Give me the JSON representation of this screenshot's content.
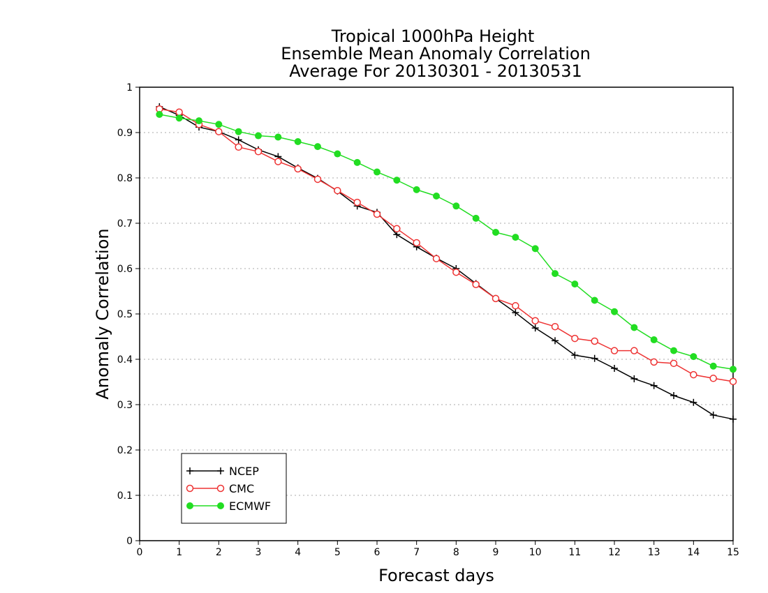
{
  "chart_data": {
    "type": "line",
    "title": [
      "Tropical 1000hPa Height",
      "Ensemble Mean Anomaly Correlation",
      "Average For 20130301 - 20130531"
    ],
    "xlabel": "Forecast days",
    "ylabel": "Anomaly Correlation",
    "xlim": [
      0,
      15
    ],
    "ylim": [
      0,
      1
    ],
    "x_ticks": [
      "0",
      "1",
      "2",
      "3",
      "4",
      "5",
      "6",
      "7",
      "8",
      "9",
      "10",
      "11",
      "12",
      "13",
      "14",
      "15"
    ],
    "y_ticks": [
      "0",
      "0.1",
      "0.2",
      "0.3",
      "0.4",
      "0.5",
      "0.6",
      "0.7",
      "0.8",
      "0.9",
      "1"
    ],
    "grid": "horizontal dotted",
    "legend_position": "bottom-left",
    "x": [
      0.5,
      1,
      1.5,
      2,
      2.5,
      3,
      3.5,
      4,
      4.5,
      5,
      5.5,
      6,
      6.5,
      7,
      7.5,
      8,
      8.5,
      9,
      9.5,
      10,
      10.5,
      11,
      11.5,
      12,
      12.5,
      13,
      13.5,
      14,
      14.5,
      15
    ],
    "series": [
      {
        "name": "NCEP",
        "color": "#000000",
        "marker": "plus",
        "values": [
          0.957,
          0.938,
          0.912,
          0.902,
          0.884,
          0.862,
          0.847,
          0.822,
          0.799,
          0.771,
          0.738,
          0.724,
          0.675,
          0.648,
          0.623,
          0.6,
          0.567,
          0.534,
          0.503,
          0.469,
          0.441,
          0.409,
          0.402,
          0.38,
          0.357,
          0.342,
          0.32,
          0.305,
          0.277,
          0.268
        ]
      },
      {
        "name": "CMC",
        "color": "#ee3333",
        "marker": "open-circle",
        "values": [
          0.952,
          0.945,
          0.918,
          0.902,
          0.868,
          0.858,
          0.836,
          0.82,
          0.797,
          0.772,
          0.746,
          0.72,
          0.688,
          0.657,
          0.622,
          0.592,
          0.565,
          0.534,
          0.518,
          0.485,
          0.472,
          0.446,
          0.44,
          0.419,
          0.419,
          0.394,
          0.391,
          0.366,
          0.358,
          0.351
        ]
      },
      {
        "name": "ECMWF",
        "color": "#22dd22",
        "marker": "filled-circle",
        "values": [
          0.94,
          0.932,
          0.926,
          0.918,
          0.902,
          0.893,
          0.89,
          0.88,
          0.869,
          0.853,
          0.834,
          0.813,
          0.795,
          0.774,
          0.76,
          0.738,
          0.711,
          0.68,
          0.669,
          0.644,
          0.589,
          0.566,
          0.53,
          0.505,
          0.47,
          0.443,
          0.419,
          0.406,
          0.385,
          0.378
        ]
      }
    ]
  }
}
